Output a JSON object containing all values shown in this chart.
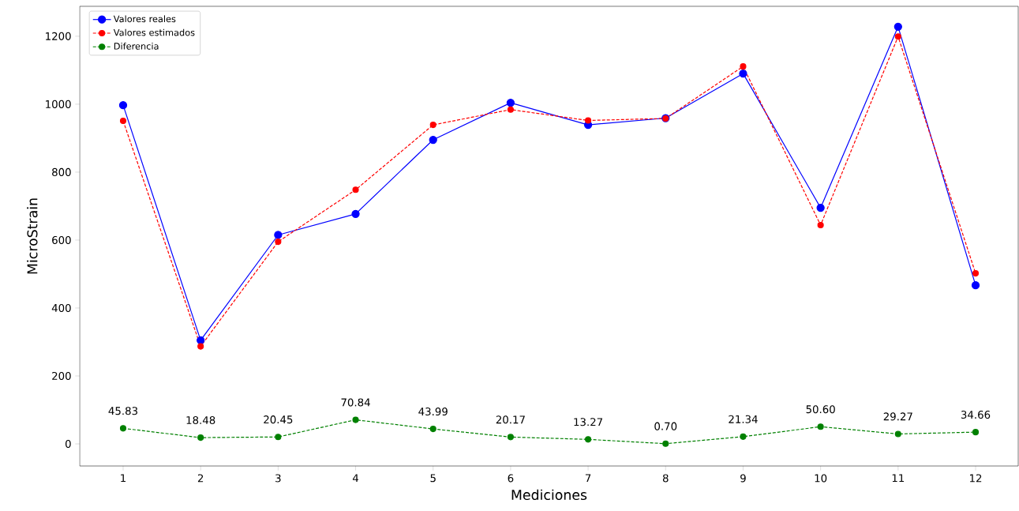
{
  "chart_data": {
    "type": "line",
    "xlabel": "Mediciones",
    "ylabel": "MicroStrain",
    "x": [
      1,
      2,
      3,
      4,
      5,
      6,
      7,
      8,
      9,
      10,
      11,
      12
    ],
    "xlim": [
      0.44,
      12.55
    ],
    "ylim": [
      -65,
      1288
    ],
    "xticks": [
      1,
      2,
      3,
      4,
      5,
      6,
      7,
      8,
      9,
      10,
      11,
      12
    ],
    "yticks": [
      0,
      200,
      400,
      600,
      800,
      1000,
      1200
    ],
    "grid": false,
    "legend": "top left",
    "marker": "circle",
    "series": [
      {
        "name": "Valores reales",
        "color": "#0000ff",
        "line_style": "solid",
        "values": [
          997,
          305,
          615,
          677,
          895,
          1004,
          939,
          959,
          1090,
          695,
          1228,
          467
        ]
      },
      {
        "name": "Valores estimados",
        "color": "#ff0000",
        "line_style": "dashed",
        "values": [
          951,
          287,
          595,
          748,
          939,
          984,
          952,
          958,
          1111,
          644,
          1199,
          502
        ]
      },
      {
        "name": "Diferencia",
        "color": "#008000",
        "line_style": "dashed",
        "values": [
          45.83,
          18.48,
          20.45,
          70.84,
          43.99,
          20.17,
          13.27,
          0.7,
          21.34,
          50.6,
          29.27,
          34.66
        ],
        "value_labels": [
          "45.83",
          "18.48",
          "20.45",
          "70.84",
          "43.99",
          "20.17",
          "13.27",
          "0.70",
          "21.34",
          "50.60",
          "29.27",
          "34.66"
        ]
      }
    ]
  }
}
